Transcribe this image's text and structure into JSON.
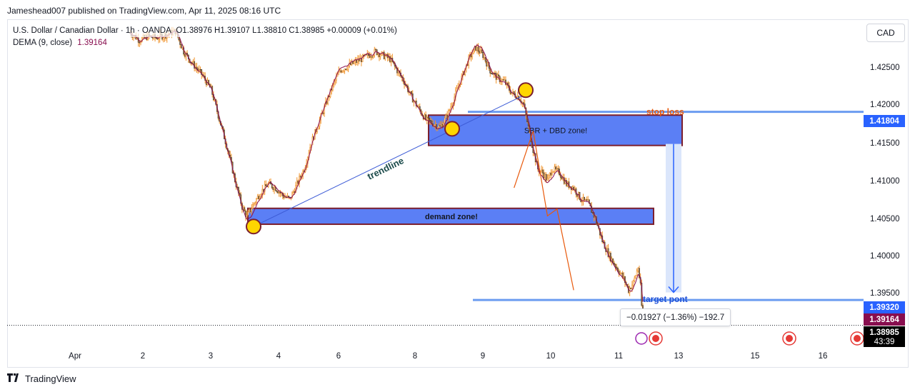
{
  "publisher": "Jameshead007 published on TradingView.com, Apr 11, 2025 08:16 UTC",
  "legend": {
    "symbol": "U.S. Dollar / Canadian Dollar · 1h · OANDA",
    "ohlc": "O1.38976 H1.39107 L1.38810 C1.38985 +0.00009 (+0.01%)",
    "indicator": "DEMA (9, close)",
    "indicator_value": "1.39164"
  },
  "currency": "CAD",
  "price_axis": [
    "1.42500",
    "1.42000",
    "1.41500",
    "1.41000",
    "1.40500",
    "1.40000",
    "1.39500"
  ],
  "price_tags": {
    "stop_loss": "1.41804",
    "target": "1.39320",
    "dema": "1.39164",
    "last": "1.38985",
    "countdown": "43:39"
  },
  "time_axis": [
    "Apr",
    "2",
    "3",
    "4",
    "6",
    "8",
    "9",
    "10",
    "11",
    "13",
    "15",
    "16"
  ],
  "annotations": {
    "stop_loss": "stop loss",
    "supply_zone": "SBR + DBD zone!",
    "demand_zone": "demand zone!",
    "trendline": "trendline",
    "target": "target pont",
    "measure": "−0.01927 (−1.36%) −192.7"
  },
  "footer": "TradingView",
  "colors": {
    "candles": "#f0932b",
    "dema": "#880e4f",
    "zone_fill": "#5b7ff5",
    "zone_border": "#7b1f2e",
    "level_line": "#6b9cf0",
    "trendline": "#3c5bd6",
    "stop_loss_text": "#e8590c",
    "target_text": "#1e50d8",
    "marker_fill": "#ffd600",
    "last_price": "#000000",
    "dema_tag": "#880e4f",
    "level_tag": "#2962ff"
  },
  "chart_data": {
    "type": "candlestick",
    "ylim": [
      1.3885,
      1.4295
    ],
    "x_labels": [
      "Apr",
      "2",
      "3",
      "4",
      "6",
      "8",
      "9",
      "10",
      "11",
      "13",
      "15",
      "16"
    ],
    "close_path": [
      [
        0,
        1.4285
      ],
      [
        8,
        1.4275
      ],
      [
        15,
        1.428
      ],
      [
        22,
        1.4278
      ],
      [
        30,
        1.4282
      ],
      [
        38,
        1.4287
      ],
      [
        45,
        1.426
      ],
      [
        52,
        1.4245
      ],
      [
        60,
        1.423
      ],
      [
        68,
        1.421
      ],
      [
        75,
        1.417
      ],
      [
        82,
        1.413
      ],
      [
        88,
        1.409
      ],
      [
        94,
        1.4055
      ],
      [
        98,
        1.4042
      ],
      [
        104,
        1.406
      ],
      [
        110,
        1.4075
      ],
      [
        116,
        1.4085
      ],
      [
        122,
        1.408
      ],
      [
        128,
        1.407
      ],
      [
        134,
        1.4065
      ],
      [
        140,
        1.4085
      ],
      [
        146,
        1.4105
      ],
      [
        152,
        1.414
      ],
      [
        158,
        1.4165
      ],
      [
        164,
        1.419
      ],
      [
        170,
        1.4215
      ],
      [
        176,
        1.4235
      ],
      [
        182,
        1.424
      ],
      [
        188,
        1.4245
      ],
      [
        194,
        1.425
      ],
      [
        200,
        1.4255
      ],
      [
        206,
        1.426
      ],
      [
        212,
        1.4255
      ],
      [
        218,
        1.425
      ],
      [
        224,
        1.4235
      ],
      [
        230,
        1.422
      ],
      [
        236,
        1.42
      ],
      [
        242,
        1.4185
      ],
      [
        248,
        1.417
      ],
      [
        254,
        1.4165
      ],
      [
        260,
        1.416
      ],
      [
        266,
        1.4175
      ],
      [
        272,
        1.42
      ],
      [
        278,
        1.4225
      ],
      [
        284,
        1.425
      ],
      [
        290,
        1.4265
      ],
      [
        296,
        1.4255
      ],
      [
        302,
        1.4235
      ],
      [
        308,
        1.4225
      ],
      [
        314,
        1.422
      ],
      [
        320,
        1.4205
      ],
      [
        326,
        1.42
      ],
      [
        330,
        1.419
      ],
      [
        334,
        1.416
      ],
      [
        338,
        1.413
      ],
      [
        342,
        1.4105
      ],
      [
        346,
        1.41
      ],
      [
        350,
        1.409
      ],
      [
        354,
        1.4105
      ],
      [
        360,
        1.41
      ],
      [
        366,
        1.4085
      ],
      [
        372,
        1.408
      ],
      [
        378,
        1.4065
      ],
      [
        384,
        1.406
      ],
      [
        390,
        1.404
      ],
      [
        396,
        1.401
      ],
      [
        402,
        1.399
      ],
      [
        408,
        1.3975
      ],
      [
        414,
        1.396
      ],
      [
        418,
        1.3945
      ],
      [
        422,
        1.3955
      ],
      [
        426,
        1.3975
      ],
      [
        428,
        1.395
      ],
      [
        430,
        1.3898
      ]
    ],
    "dema_period": 9,
    "dema_last": 1.39164,
    "last_close": 1.38985,
    "levels": {
      "stop_loss": 1.41804,
      "target": 1.3932,
      "dema": 1.39164,
      "last": 1.38985
    },
    "zones": [
      {
        "name": "SBR + DBD zone!",
        "high": 1.4176,
        "low": 1.4136
      },
      {
        "name": "demand zone!",
        "high": 1.4053,
        "low": 1.4032
      }
    ],
    "projection_path": [
      [
        322,
        1.408
      ],
      [
        338,
        1.4155
      ],
      [
        350,
        1.4043
      ],
      [
        358,
        1.4052
      ],
      [
        372,
        1.3945
      ]
    ],
    "measure": {
      "change": -0.01927,
      "percent": -1.36,
      "pips": -192.7
    }
  }
}
